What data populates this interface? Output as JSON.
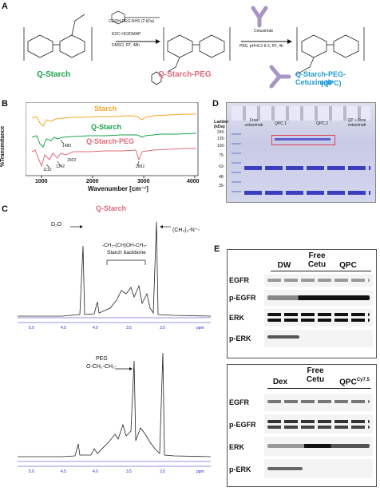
{
  "panels": {
    "A": {
      "label": "A",
      "reagent1": "COOH-PEG-NHS (2 kDa)",
      "reagent2": "EDC·HCl/DMAP",
      "reagent3": "DMSO, RT, 48h",
      "reagent4": "Cetuximab",
      "reagent5": "PBS, pH=8.2-8.3, RT, 4h",
      "q_starch": "Q-Starch",
      "q_starch_peg": "Q-Starch-PEG",
      "qpc_line1": "Q-Starch-PEG-Cetuximab",
      "qpc_line2": "(QPC)",
      "colors": {
        "q_starch": "#1aa34a",
        "q_starch_peg": "#e06a7a",
        "qpc": "#1e9ad6",
        "antibody": "#a895c6"
      }
    },
    "B": {
      "label": "B",
      "ylabel": "%Transmitance",
      "xlabel": "Wavenumber [cm⁻¹]",
      "ticks": [
        "1000",
        "2000",
        "3000",
        "4000"
      ],
      "series": [
        {
          "name": "Starch",
          "color": "#f5a623"
        },
        {
          "name": "Q-Starch",
          "color": "#1aa34a"
        },
        {
          "name": "Q-Starch-PEG",
          "color": "#e06a7a"
        }
      ],
      "annotations": [
        "1480",
        "1110",
        "1342",
        "1503",
        "2892"
      ]
    },
    "C": {
      "label": "C",
      "title1": "Q-Starch",
      "d2o": "D₂O",
      "backbone1": "-CH₂-(CH)OH-CH₂-",
      "backbone2": "Starch backbone",
      "methyl": "(CH₃)₃-N⁺-",
      "peg1": "PEG",
      "peg2": "O-CH₂-CH₂-",
      "ppm": "ppm",
      "axis1": [
        "5.0",
        "4.5",
        "4.0",
        "3.5",
        "3.0"
      ],
      "axis2": [
        "5.0",
        "4.5",
        "4.0",
        "3.5",
        "3.0"
      ]
    },
    "D": {
      "label": "D",
      "ladder": "Ladder (kDa)",
      "lanes": [
        "Free cetuximab",
        "QPC 1",
        "QPC 2",
        "QP + Free cetuximab"
      ],
      "markers": [
        "245-",
        "135-",
        "100-",
        "75-",
        "63-",
        "48-",
        "35-"
      ]
    },
    "E": {
      "label": "E",
      "blot1": {
        "headers": [
          "DW",
          "Free Cetu",
          "QPC"
        ],
        "rows": [
          "EGFR",
          "p-EGFR",
          "ERK",
          "p-ERK"
        ]
      },
      "blot2": {
        "headers": [
          "Dex",
          "Free Cetu",
          "QPC"
        ],
        "sup": "Cy7.5",
        "rows": [
          "EGFR",
          "p-EGFR",
          "ERK",
          "p-ERK"
        ]
      }
    }
  }
}
